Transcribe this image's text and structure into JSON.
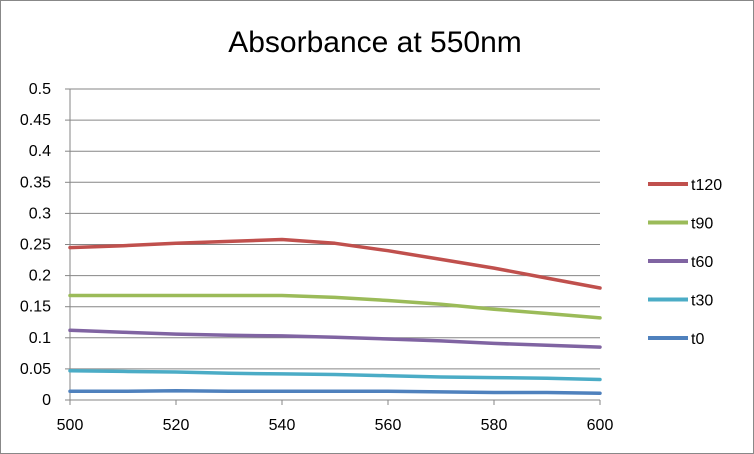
{
  "chart_data": {
    "type": "line",
    "title": "Absorbance at 550nm",
    "xlabel": "",
    "ylabel": "",
    "xlim": [
      500,
      600
    ],
    "ylim": [
      0,
      0.5
    ],
    "x_ticks": [
      "500",
      "520",
      "540",
      "560",
      "580",
      "600"
    ],
    "y_ticks": [
      "0",
      "0.05",
      "0.1",
      "0.15",
      "0.2",
      "0.25",
      "0.3",
      "0.35",
      "0.4",
      "0.45",
      "0.5"
    ],
    "grid": true,
    "legend_position": "right",
    "x": [
      500,
      510,
      520,
      530,
      540,
      550,
      560,
      570,
      580,
      590,
      600
    ],
    "series": [
      {
        "name": "t120",
        "color": "#C0504D",
        "values": [
          0.245,
          0.248,
          0.252,
          0.255,
          0.258,
          0.252,
          0.24,
          0.226,
          0.212,
          0.196,
          0.18
        ]
      },
      {
        "name": "t90",
        "color": "#9BBB59",
        "values": [
          0.168,
          0.168,
          0.168,
          0.168,
          0.168,
          0.165,
          0.16,
          0.154,
          0.146,
          0.139,
          0.132
        ]
      },
      {
        "name": "t60",
        "color": "#8064A2",
        "values": [
          0.112,
          0.109,
          0.106,
          0.104,
          0.103,
          0.101,
          0.098,
          0.095,
          0.091,
          0.088,
          0.085
        ]
      },
      {
        "name": "t30",
        "color": "#4BACC6",
        "values": [
          0.047,
          0.046,
          0.045,
          0.043,
          0.042,
          0.041,
          0.039,
          0.037,
          0.036,
          0.035,
          0.033
        ]
      },
      {
        "name": "t0",
        "color": "#4F81BD",
        "values": [
          0.014,
          0.014,
          0.015,
          0.014,
          0.014,
          0.014,
          0.014,
          0.013,
          0.012,
          0.012,
          0.011
        ]
      }
    ]
  }
}
